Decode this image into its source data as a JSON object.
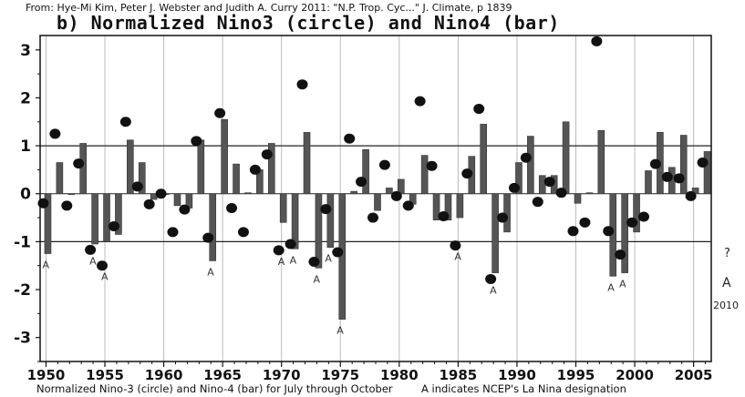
{
  "header": {
    "source": "From: Hye-Mi Kim, Peter J. Webster and Judith A. Curry 2011: \"N.P. Trop. Cyc...\" J. Climate, p 1839"
  },
  "footer": {
    "left_note": "Normalized Nino-3 (circle) and Nino-4 (bar) for July through October",
    "right_note": "A indicates NCEP's La Nina designation"
  },
  "colors": {
    "bar": "#555555",
    "circle": "#111111",
    "grid": "#bbbbbb",
    "threshold": "#222222"
  },
  "chart_data": {
    "type": "bar",
    "title": "b) Normalized Nino3 (circle) and Nino4 (bar)",
    "xlabel": "",
    "ylabel": "",
    "xlim": [
      1949.5,
      2006.5
    ],
    "ylim": [
      -3.5,
      3.3
    ],
    "yticks": [
      3,
      2,
      1,
      0,
      -1,
      -2,
      -3
    ],
    "xticks": [
      1950,
      1955,
      1960,
      1965,
      1970,
      1975,
      1980,
      1985,
      1990,
      1995,
      2000,
      2005
    ],
    "grid": true,
    "reference_lines": [
      1,
      -1
    ],
    "years": [
      1950,
      1951,
      1952,
      1953,
      1954,
      1955,
      1956,
      1957,
      1958,
      1959,
      1960,
      1961,
      1962,
      1963,
      1964,
      1965,
      1966,
      1967,
      1968,
      1969,
      1970,
      1971,
      1972,
      1973,
      1974,
      1975,
      1976,
      1977,
      1978,
      1979,
      1980,
      1981,
      1982,
      1983,
      1984,
      1985,
      1986,
      1987,
      1988,
      1989,
      1990,
      1991,
      1992,
      1993,
      1994,
      1995,
      1996,
      1997,
      1998,
      1999,
      2000,
      2001,
      2002,
      2003,
      2004,
      2005,
      2006
    ],
    "series": [
      {
        "name": "Nino4 (bar)",
        "type": "bar",
        "values": [
          -1.25,
          0.65,
          0,
          1.05,
          -1.05,
          -1.0,
          -0.85,
          1.12,
          0.65,
          -0.12,
          -0.02,
          -0.25,
          -0.3,
          1.12,
          -1.4,
          1.55,
          0.62,
          0.02,
          0.5,
          1.05,
          -0.6,
          -1.15,
          1.28,
          -1.55,
          -1.12,
          -2.62,
          0.05,
          0.92,
          -0.35,
          0.12,
          0.3,
          -0.22,
          0.8,
          -0.55,
          -0.55,
          -0.5,
          0.78,
          1.45,
          -1.65,
          -0.8,
          0.65,
          1.2,
          0.38,
          0.38,
          1.5,
          -0.2,
          0.02,
          1.32,
          -1.72,
          -1.65,
          -0.8,
          0.48,
          1.28,
          0.55,
          1.22,
          0.12,
          0.88
        ]
      },
      {
        "name": "Nino3 (circle)",
        "type": "scatter",
        "values": [
          -0.2,
          1.25,
          -0.25,
          0.63,
          -1.17,
          -1.5,
          -0.68,
          1.5,
          0.15,
          -0.22,
          0.0,
          -0.8,
          -0.33,
          1.1,
          -0.92,
          1.68,
          -0.3,
          -0.8,
          0.5,
          0.82,
          -1.18,
          -1.05,
          2.28,
          -1.42,
          -0.32,
          -1.22,
          1.15,
          0.25,
          -0.5,
          0.6,
          -0.05,
          -0.25,
          1.93,
          0.58,
          -0.47,
          -1.08,
          0.42,
          1.77,
          -1.78,
          -0.5,
          0.12,
          0.75,
          -0.17,
          0.25,
          0.02,
          -0.78,
          -0.6,
          3.18,
          -0.78,
          -1.27,
          -0.6,
          -0.48,
          0.62,
          0.35,
          0.32,
          -0.05,
          0.65
        ]
      }
    ],
    "la_nina_years": [
      1950,
      1954,
      1955,
      1964,
      1970,
      1971,
      1973,
      1974,
      1975,
      1985,
      1988,
      1998,
      1999
    ],
    "annotations": {
      "question_mark": "?",
      "a_marker": "A",
      "year_2010": "2010"
    }
  }
}
